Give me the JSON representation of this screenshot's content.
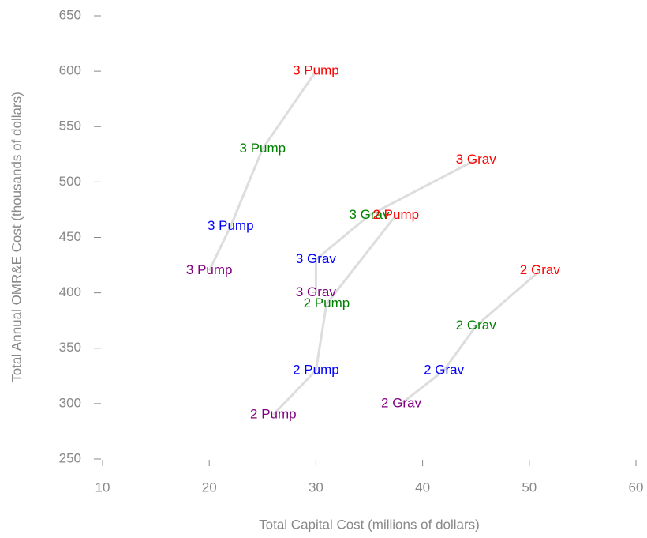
{
  "chart_data": {
    "type": "scatter",
    "xlabel": "Total Capital Cost (millions of dollars)",
    "ylabel": "Total Annual OMR&E Cost (thousands of dollars)",
    "xlim": [
      10,
      60
    ],
    "xticks": [
      10,
      20,
      30,
      40,
      50,
      60
    ],
    "ylim": [
      250,
      650
    ],
    "yticks": [
      250,
      300,
      350,
      400,
      450,
      500,
      550,
      600,
      650
    ],
    "line_color": "#dddddd",
    "series": [
      {
        "color": "#800080",
        "labels": [
          "2 Pump",
          "2 Grav",
          "3 Pump",
          "3 Grav"
        ],
        "x": [
          26,
          38,
          20,
          30
        ],
        "y": [
          290,
          300,
          420,
          400
        ]
      },
      {
        "color": "#0000ff",
        "labels": [
          "2 Pump",
          "2 Grav",
          "3 Pump",
          "3 Grav"
        ],
        "x": [
          30,
          42,
          22,
          30
        ],
        "y": [
          330,
          330,
          460,
          430
        ]
      },
      {
        "color": "#008000",
        "labels": [
          "2 Pump",
          "2 Grav",
          "3 Pump",
          "3 Grav"
        ],
        "x": [
          31,
          45,
          25,
          35
        ],
        "y": [
          390,
          370,
          530,
          470
        ]
      },
      {
        "color": "#ff0000",
        "labels": [
          "2 Pump",
          "2 Grav",
          "3 Pump",
          "3 Grav"
        ],
        "x": [
          37.5,
          51,
          30,
          45
        ],
        "y": [
          470,
          420,
          600,
          520
        ]
      }
    ]
  }
}
